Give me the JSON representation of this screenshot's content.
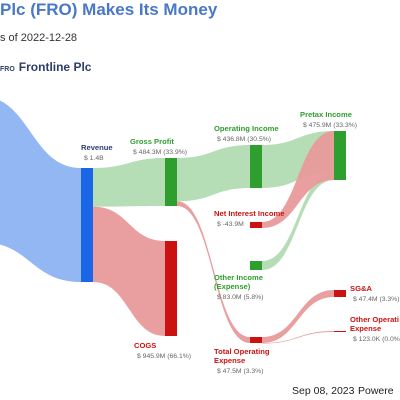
{
  "header": {
    "title": "Plc (FRO) Makes Its Money",
    "subtitle": "s of 2022-12-28",
    "company_ticker": "FRO",
    "company_name": "Frontline Plc"
  },
  "footer": {
    "date": "Sep 08, 2023",
    "powered": "Powere"
  },
  "colors": {
    "revenue": "#1a66e6",
    "revenue_flow": "#8cb3f2",
    "profit": "#2e9e2e",
    "profit_flow": "#b2dcb2",
    "expense": "#cc1111",
    "expense_flow": "#e89a9a",
    "profit_text": "#2e9e2e",
    "expense_text": "#cc1111",
    "revenue_text": "#2c3e6b"
  },
  "chart_data": {
    "type": "sankey",
    "nodes": [
      {
        "id": "revenue",
        "label": "Revenue",
        "value_text": "$ 1.4B",
        "kind": "revenue"
      },
      {
        "id": "gross_profit",
        "label": "Gross Profit",
        "value_text": "$ 484.3M (33.9%)",
        "kind": "profit"
      },
      {
        "id": "cogs",
        "label": "COGS",
        "value_text": "$ 945.9M (66.1%)",
        "kind": "expense"
      },
      {
        "id": "operating_income",
        "label": "Operating Income",
        "value_text": "$ 436.8M (30.5%)",
        "kind": "profit"
      },
      {
        "id": "total_operating_expense",
        "label": "Total Operating\nExpense",
        "value_text": "$ 47.5M (3.3%)",
        "kind": "expense"
      },
      {
        "id": "pretax_income",
        "label": "Pretax Income",
        "value_text": "$ 475.9M (33.3%)",
        "kind": "profit"
      },
      {
        "id": "net_interest_income",
        "label": "Net Interest Income",
        "value_text": "$ -43.9M",
        "kind": "expense"
      },
      {
        "id": "other_income",
        "label": "Other Income\n(Expense)",
        "value_text": "$ 83.0M (5.8%)",
        "kind": "profit"
      },
      {
        "id": "sga",
        "label": "SG&A",
        "value_text": "$ 47.4M (3.3%)",
        "kind": "expense"
      },
      {
        "id": "other_operating_expense",
        "label": "Other Operati\nExpense",
        "value_text": "$ 123.0K (0.0%",
        "kind": "expense"
      }
    ],
    "flows": [
      {
        "from": "revenue",
        "to": "gross_profit",
        "value_m": 484.3
      },
      {
        "from": "revenue",
        "to": "cogs",
        "value_m": 945.9
      },
      {
        "from": "gross_profit",
        "to": "operating_income",
        "value_m": 436.8
      },
      {
        "from": "gross_profit",
        "to": "total_operating_expense",
        "value_m": 47.5
      },
      {
        "from": "operating_income",
        "to": "pretax_income",
        "value_m": 436.8
      },
      {
        "from": "other_income",
        "to": "pretax_income",
        "value_m": 83.0
      },
      {
        "from": "pretax_income",
        "to": "net_interest_income",
        "value_m": 43.9
      },
      {
        "from": "total_operating_expense",
        "to": "sga",
        "value_m": 47.4
      },
      {
        "from": "total_operating_expense",
        "to": "other_operating_expense",
        "value_m": 0.123
      }
    ]
  }
}
